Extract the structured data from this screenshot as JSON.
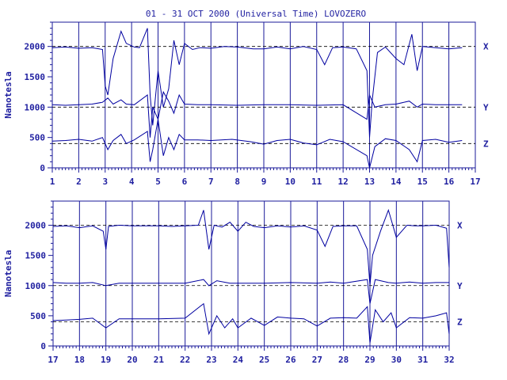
{
  "title": "01 - 31 OCT 2000 (Universal Time) LOVOZERO",
  "colors": {
    "trace": "#0000a0",
    "axis": "#1a1a9a",
    "text": "#1f1fa0"
  },
  "chart_data": [
    {
      "type": "line",
      "panel": "top",
      "title": "01 - 31 OCT 2000 (Universal Time) LOVOZERO",
      "ylabel": "Nanotesla",
      "xlabel": "",
      "xlim": [
        1,
        17
      ],
      "ylim": [
        0,
        2400
      ],
      "x_ticks": [
        "1",
        "2",
        "3",
        "4",
        "5",
        "6",
        "7",
        "8",
        "9",
        "10",
        "11",
        "12",
        "13",
        "14",
        "15",
        "16",
        "17"
      ],
      "y_ticks": [
        "0",
        "500",
        "1000",
        "1500",
        "2000"
      ],
      "grid": "vertical lines at each day",
      "series": [
        {
          "name": "X",
          "baseline": 2000,
          "x": [
            1,
            1.5,
            2,
            2.5,
            2.9,
            3.0,
            3.1,
            3.3,
            3.6,
            3.8,
            4.1,
            4.3,
            4.6,
            4.7,
            4.8,
            5.0,
            5.2,
            5.4,
            5.6,
            5.8,
            6.0,
            6.3,
            6.6,
            7.0,
            7.5,
            8.0,
            8.6,
            9.0,
            9.5,
            10.0,
            10.5,
            11.0,
            11.3,
            11.6,
            12.0,
            12.5,
            12.9,
            13.0,
            13.1,
            13.3,
            13.6,
            14.0,
            14.3,
            14.6,
            14.8,
            15.0,
            15.5,
            16.0,
            16.5
          ],
          "values": [
            1980,
            1990,
            1970,
            1980,
            1950,
            1350,
            1200,
            1800,
            2250,
            2050,
            1990,
            1980,
            2300,
            1200,
            700,
            1600,
            1000,
            1300,
            2100,
            1700,
            2050,
            1950,
            1980,
            1970,
            2000,
            1990,
            1960,
            1960,
            1990,
            1960,
            2000,
            1950,
            1700,
            1980,
            1990,
            1960,
            1600,
            500,
            1100,
            1900,
            1990,
            1800,
            1700,
            2200,
            1600,
            2000,
            1980,
            1960,
            1980
          ]
        },
        {
          "name": "Y",
          "baseline": 1000,
          "x": [
            1,
            1.5,
            2,
            2.5,
            2.9,
            3.1,
            3.3,
            3.6,
            3.8,
            4.1,
            4.6,
            4.7,
            4.8,
            5.0,
            5.2,
            5.4,
            5.6,
            5.8,
            6.0,
            6.5,
            7.0,
            8.0,
            9.0,
            10.0,
            11.0,
            12.0,
            12.9,
            13.0,
            13.2,
            13.6,
            14.0,
            14.5,
            14.8,
            15.0,
            15.5,
            16.0,
            16.5
          ],
          "values": [
            1040,
            1030,
            1040,
            1050,
            1080,
            1150,
            1050,
            1120,
            1050,
            1040,
            1200,
            500,
            1000,
            800,
            1250,
            1100,
            900,
            1200,
            1050,
            1040,
            1040,
            1030,
            1040,
            1040,
            1030,
            1040,
            800,
            1200,
            1000,
            1040,
            1050,
            1100,
            1000,
            1050,
            1040,
            1040,
            1040
          ]
        },
        {
          "name": "Z",
          "baseline": 400,
          "x": [
            1,
            1.5,
            2,
            2.5,
            2.9,
            3.1,
            3.3,
            3.6,
            3.8,
            4.1,
            4.6,
            4.7,
            4.8,
            5.0,
            5.2,
            5.4,
            5.6,
            5.8,
            6.0,
            6.5,
            7.0,
            7.8,
            8.5,
            9.0,
            9.5,
            10.0,
            10.5,
            11.0,
            11.5,
            12.0,
            12.9,
            13.0,
            13.2,
            13.6,
            14.0,
            14.5,
            14.8,
            15.0,
            15.5,
            16.0,
            16.5
          ],
          "values": [
            440,
            450,
            470,
            440,
            500,
            300,
            450,
            550,
            400,
            460,
            600,
            100,
            300,
            800,
            200,
            500,
            300,
            550,
            460,
            460,
            450,
            470,
            430,
            390,
            450,
            470,
            410,
            380,
            470,
            430,
            200,
            0,
            350,
            480,
            450,
            300,
            100,
            450,
            470,
            420,
            450
          ]
        }
      ]
    },
    {
      "type": "line",
      "panel": "bottom",
      "title": "",
      "ylabel": "Nanotesla",
      "xlabel": "",
      "xlim": [
        17,
        32
      ],
      "ylim": [
        0,
        2400
      ],
      "x_ticks": [
        "17",
        "18",
        "19",
        "20",
        "21",
        "22",
        "23",
        "24",
        "25",
        "26",
        "27",
        "28",
        "29",
        "30",
        "31",
        "32"
      ],
      "y_ticks": [
        "0",
        "500",
        "1000",
        "1500",
        "2000"
      ],
      "grid": "vertical lines at each day",
      "series": [
        {
          "name": "X",
          "baseline": 2000,
          "x": [
            17,
            17.5,
            18,
            18.5,
            18.9,
            19.0,
            19.1,
            19.5,
            20.0,
            20.5,
            21.0,
            21.5,
            22.0,
            22.5,
            22.7,
            22.9,
            23.1,
            23.4,
            23.7,
            24.0,
            24.3,
            24.6,
            25.0,
            25.5,
            26.0,
            26.5,
            27.0,
            27.3,
            27.6,
            28.0,
            28.5,
            28.9,
            29.0,
            29.1,
            29.4,
            29.7,
            30.0,
            30.4,
            30.7,
            31.0,
            31.5,
            31.9,
            32.0
          ],
          "values": [
            1980,
            1990,
            1960,
            1990,
            1900,
            1600,
            1980,
            2000,
            1990,
            1990,
            1990,
            1980,
            1990,
            2000,
            2250,
            1600,
            2000,
            1970,
            2050,
            1900,
            2050,
            1980,
            1960,
            1990,
            1970,
            1990,
            1920,
            1650,
            1980,
            1990,
            1990,
            1600,
            1000,
            1500,
            1900,
            2250,
            1800,
            2000,
            1990,
            1990,
            2000,
            1950,
            1300
          ]
        },
        {
          "name": "Y",
          "baseline": 1000,
          "x": [
            17,
            17.5,
            18,
            18.5,
            19.0,
            19.5,
            20.0,
            21.0,
            22.0,
            22.7,
            22.9,
            23.2,
            23.7,
            24.0,
            25.0,
            26.0,
            27.0,
            27.5,
            28.0,
            28.9,
            29.0,
            29.2,
            29.7,
            30.0,
            30.5,
            31.0,
            31.5,
            32.0
          ],
          "values": [
            1050,
            1040,
            1040,
            1050,
            1000,
            1040,
            1040,
            1040,
            1040,
            1100,
            1000,
            1080,
            1040,
            1040,
            1040,
            1050,
            1040,
            1060,
            1040,
            1100,
            700,
            1100,
            1050,
            1040,
            1060,
            1040,
            1050,
            1050
          ]
        },
        {
          "name": "Z",
          "baseline": 400,
          "x": [
            17,
            17.5,
            18,
            18.5,
            19.0,
            19.5,
            20.0,
            21.0,
            22.0,
            22.7,
            22.9,
            23.2,
            23.5,
            23.8,
            24.0,
            24.5,
            25.0,
            25.5,
            26.0,
            26.5,
            27.0,
            27.5,
            28.0,
            28.5,
            28.9,
            29.0,
            29.2,
            29.5,
            29.8,
            30.0,
            30.5,
            31.0,
            31.5,
            31.9,
            32.0
          ],
          "values": [
            420,
            430,
            440,
            460,
            300,
            450,
            450,
            450,
            460,
            700,
            200,
            500,
            300,
            450,
            300,
            460,
            340,
            480,
            460,
            450,
            330,
            460,
            470,
            460,
            650,
            50,
            600,
            400,
            550,
            300,
            470,
            460,
            500,
            550,
            200
          ]
        }
      ]
    }
  ]
}
